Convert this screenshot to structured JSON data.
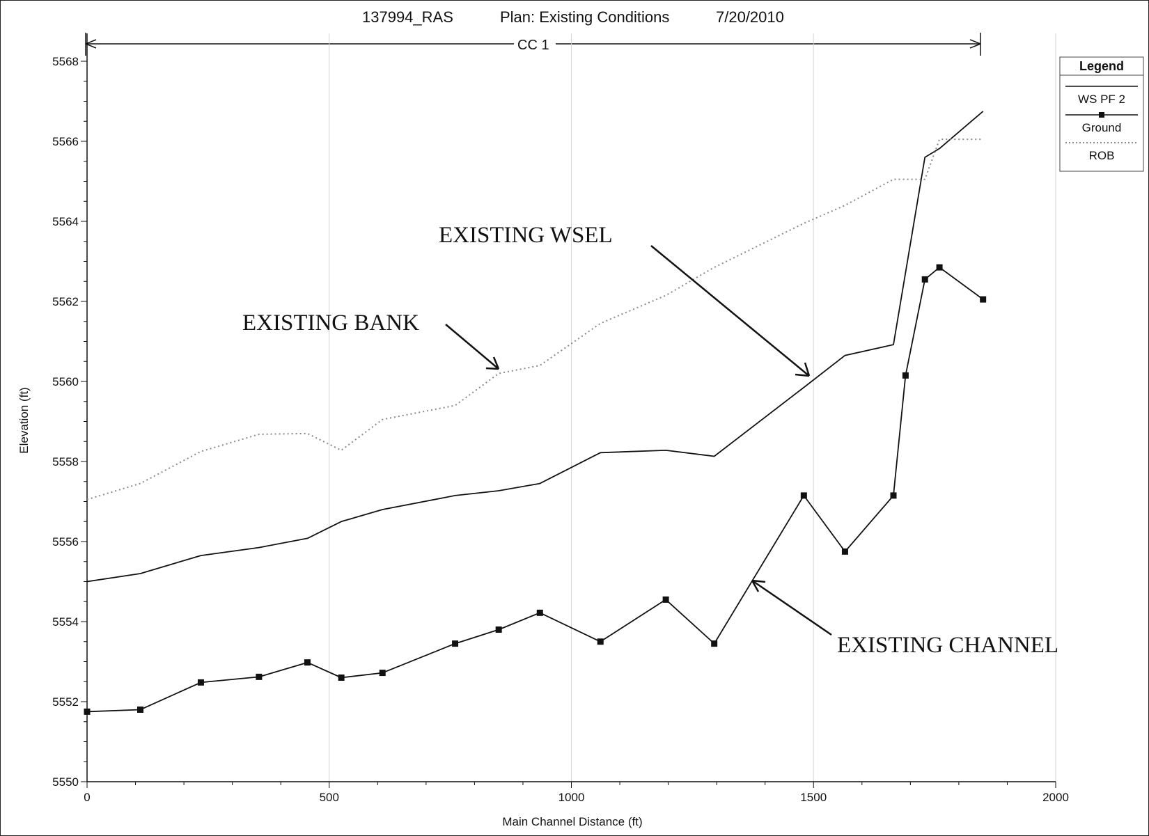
{
  "header": {
    "project": "137994_RAS",
    "plan": "Plan: Existing Conditions",
    "date": "7/20/2010",
    "reach_label": "CC 1"
  },
  "legend": {
    "title": "Legend",
    "items": [
      "WS  PF 2",
      "Ground",
      "ROB"
    ]
  },
  "annotations": {
    "bank": "EXISTING BANK",
    "wsel": "EXISTING WSEL",
    "channel": "EXISTING CHANNEL"
  },
  "chart_data": {
    "type": "line",
    "title": "137994_RAS       Plan: Existing Conditions    7/20/2010",
    "xlabel": "Main Channel Distance (ft)",
    "ylabel": "Elevation (ft)",
    "xlim": [
      0,
      2000
    ],
    "ylim": [
      5550,
      5568
    ],
    "x_ticks": [
      0,
      500,
      1000,
      1500,
      2000
    ],
    "y_ticks": [
      5550,
      5552,
      5554,
      5556,
      5558,
      5560,
      5562,
      5564,
      5566,
      5568
    ],
    "grid": "vertical only",
    "legend_position": "top-right",
    "series": [
      {
        "name": "WS  PF 2",
        "color": "#111111",
        "style": "solid",
        "x": [
          0,
          110,
          235,
          355,
          455,
          525,
          610,
          760,
          850,
          935,
          1060,
          1195,
          1295,
          1480,
          1565,
          1665,
          1730,
          1760,
          1850
        ],
        "y": [
          5555.0,
          5555.2,
          5555.65,
          5555.85,
          5556.08,
          5556.5,
          5556.8,
          5557.15,
          5557.27,
          5557.45,
          5558.22,
          5558.28,
          5558.13,
          5559.85,
          5560.65,
          5560.92,
          5565.6,
          5565.82,
          5566.75
        ]
      },
      {
        "name": "Ground",
        "color": "#111111",
        "style": "solid-markers",
        "x": [
          0,
          110,
          235,
          355,
          455,
          525,
          610,
          760,
          850,
          935,
          1060,
          1195,
          1295,
          1480,
          1565,
          1665,
          1690,
          1730,
          1760,
          1850
        ],
        "y": [
          5551.75,
          5551.8,
          5552.48,
          5552.62,
          5552.98,
          5552.6,
          5552.72,
          5553.45,
          5553.8,
          5554.22,
          5553.5,
          5554.55,
          5553.45,
          5557.15,
          5555.75,
          5557.15,
          5560.15,
          5562.55,
          5562.85,
          5562.05
        ]
      },
      {
        "name": "ROB",
        "color": "#888888",
        "style": "dotted",
        "x": [
          0,
          110,
          235,
          355,
          455,
          525,
          610,
          760,
          850,
          935,
          1060,
          1195,
          1295,
          1480,
          1565,
          1665,
          1730,
          1760,
          1850
        ],
        "y": [
          5557.05,
          5557.45,
          5558.25,
          5558.68,
          5558.7,
          5558.28,
          5559.05,
          5559.4,
          5560.2,
          5560.4,
          5561.45,
          5562.15,
          5562.85,
          5563.95,
          5564.4,
          5565.05,
          5565.05,
          5566.05,
          5566.05
        ]
      }
    ]
  }
}
